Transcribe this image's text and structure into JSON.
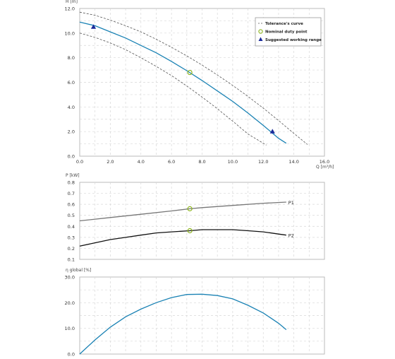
{
  "chart_data": [
    {
      "type": "line",
      "ylabel": "H [m]",
      "xlabel": "Q [m³/h]",
      "xlim": [
        0,
        16
      ],
      "ylim": [
        0,
        12
      ],
      "x_ticks": [
        "0.0",
        "2.0",
        "4.0",
        "6.0",
        "8.0",
        "10.0",
        "12.0",
        "14.0",
        "16.0"
      ],
      "y_ticks": [
        "0.0",
        "2.0",
        "4.0",
        "6.0",
        "8.0",
        "10.0",
        "12.0"
      ],
      "grid": true,
      "legend_position": "top-right",
      "series": [
        {
          "name": "",
          "style": "solid",
          "color": "#1a82b4",
          "x": [
            0,
            1,
            2,
            3,
            4,
            5,
            6,
            7,
            8,
            9,
            10,
            11,
            12,
            13,
            13.5
          ],
          "y": [
            10.9,
            10.6,
            10.1,
            9.6,
            9.0,
            8.4,
            7.7,
            6.95,
            6.15,
            5.3,
            4.45,
            3.5,
            2.5,
            1.45,
            1.05
          ]
        },
        {
          "name": "Tolerance's curve",
          "style": "dashed",
          "color": "#555555",
          "x": [
            0,
            1,
            2,
            3,
            4,
            5,
            6,
            7,
            8,
            9,
            10,
            11,
            12,
            13,
            14,
            14.9
          ],
          "y": [
            11.7,
            11.45,
            11.05,
            10.6,
            10.1,
            9.5,
            8.85,
            8.15,
            7.4,
            6.6,
            5.75,
            4.85,
            3.9,
            2.9,
            1.85,
            0.95
          ]
        },
        {
          "name": "",
          "style": "dashed",
          "color": "#555555",
          "x": [
            0,
            1,
            2,
            3,
            4,
            5,
            6,
            7,
            8,
            9,
            10,
            11,
            12.2
          ],
          "y": [
            10.0,
            9.65,
            9.2,
            8.65,
            8.0,
            7.3,
            6.55,
            5.7,
            4.8,
            3.85,
            2.85,
            1.8,
            0.9
          ]
        }
      ],
      "markers": [
        {
          "name": "Nominal duty point",
          "shape": "circle",
          "color": "#8cb41e",
          "x": [
            7.2
          ],
          "y": [
            6.8
          ]
        },
        {
          "name": "Suggested working range",
          "shape": "triangle",
          "color": "#1a2a9a",
          "x": [
            0.9,
            12.6
          ],
          "y": [
            10.5,
            2.0
          ]
        }
      ]
    },
    {
      "type": "line",
      "ylabel": "P [kW]",
      "xlim": [
        0,
        16
      ],
      "ylim": [
        0.1,
        0.8
      ],
      "y_ticks": [
        "0.8",
        "0.7",
        "0.6",
        "0.5",
        "0.4",
        "0.3",
        "0.2",
        "0.1"
      ],
      "grid": true,
      "series": [
        {
          "name": "P1",
          "color": "#777777",
          "x": [
            0,
            2,
            4,
            6,
            7.2,
            8,
            10,
            12,
            13.5
          ],
          "y": [
            0.45,
            0.48,
            0.51,
            0.54,
            0.56,
            0.57,
            0.59,
            0.61,
            0.62
          ]
        },
        {
          "name": "P2",
          "color": "#111111",
          "x": [
            0,
            1,
            2,
            3,
            4,
            5,
            6,
            7.2,
            8,
            9,
            10,
            11,
            12,
            13,
            13.5
          ],
          "y": [
            0.22,
            0.25,
            0.28,
            0.3,
            0.32,
            0.34,
            0.35,
            0.36,
            0.37,
            0.37,
            0.37,
            0.36,
            0.35,
            0.33,
            0.32
          ]
        }
      ],
      "markers": [
        {
          "name": "",
          "shape": "circle",
          "color": "#8cb41e",
          "x": [
            7.2,
            7.2
          ],
          "y": [
            0.56,
            0.36
          ]
        }
      ]
    },
    {
      "type": "line",
      "ylabel": "η global [%]",
      "xlim": [
        0,
        16
      ],
      "ylim": [
        0,
        30
      ],
      "y_ticks": [
        "30.0",
        "20.0",
        "10.0",
        "0.0"
      ],
      "grid": true,
      "series": [
        {
          "name": "",
          "color": "#1a82b4",
          "x": [
            0,
            1,
            2,
            3,
            4,
            5,
            6,
            7,
            8,
            9,
            10,
            11,
            12,
            13,
            13.5
          ],
          "y": [
            0,
            5.5,
            10.5,
            14.5,
            17.5,
            20,
            22,
            23.2,
            23.3,
            22.8,
            21.5,
            19.0,
            16.0,
            12.0,
            9.5
          ]
        }
      ]
    }
  ],
  "legend": {
    "tolerance": "Tolerance's curve",
    "duty": "Nominal duty point",
    "range": "Suggested working range"
  },
  "colors": {
    "pump_curve": "#1a82b4",
    "tolerance": "#555555",
    "duty_point": "#8cb41e",
    "working_range": "#1a2a9a",
    "grid": "#d8d8d8"
  }
}
